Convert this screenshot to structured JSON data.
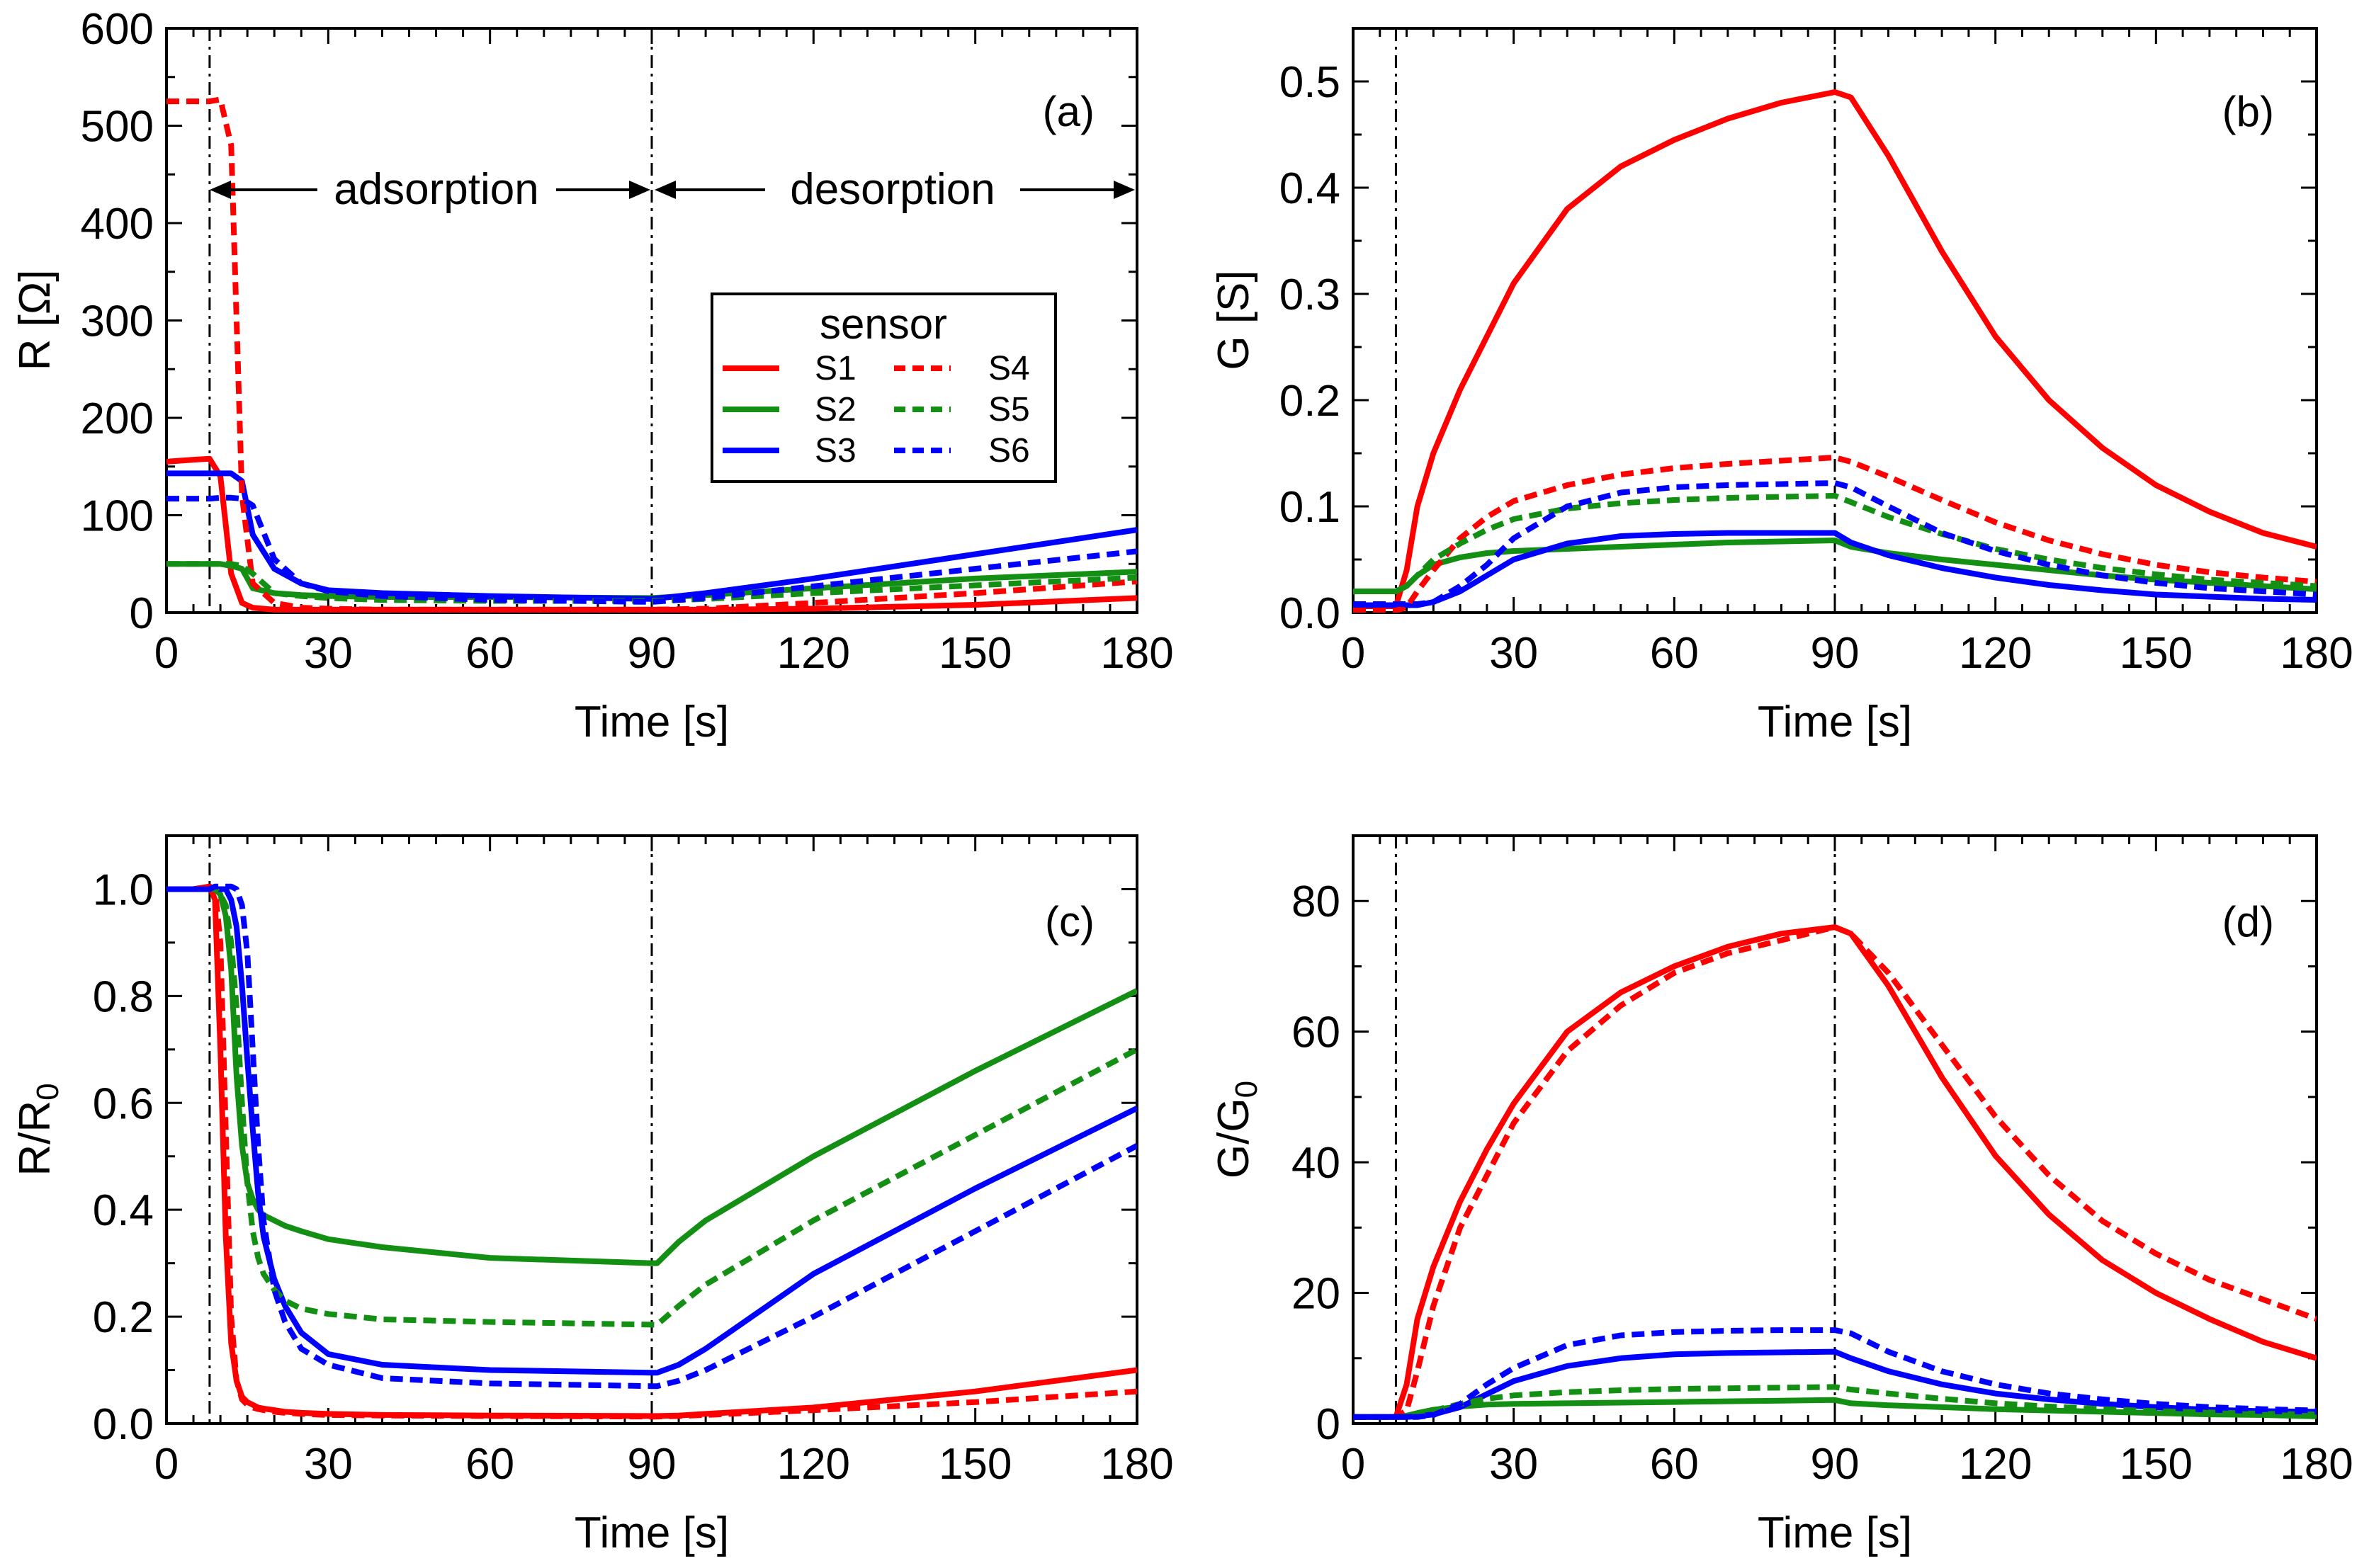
{
  "figure": {
    "legend": {
      "title": "sensor",
      "entries": [
        {
          "label": "S1",
          "series": "S1"
        },
        {
          "label": "S4",
          "series": "S4"
        },
        {
          "label": "S2",
          "series": "S2"
        },
        {
          "label": "S5",
          "series": "S5"
        },
        {
          "label": "S3",
          "series": "S3"
        },
        {
          "label": "S6",
          "series": "S6"
        }
      ]
    },
    "series_styles": {
      "S1": {
        "color": "#ff0000",
        "dash": "solid"
      },
      "S2": {
        "color": "#138f13",
        "dash": "solid"
      },
      "S3": {
        "color": "#0000ff",
        "dash": "solid"
      },
      "S4": {
        "color": "#ff0000",
        "dash": "dashed"
      },
      "S5": {
        "color": "#138f13",
        "dash": "dashed"
      },
      "S6": {
        "color": "#0000ff",
        "dash": "dashed"
      }
    },
    "annotations": {
      "adsorption": "adsorption",
      "desorption": "desorption",
      "adsorption_span": [
        8,
        90
      ],
      "desorption_span": [
        90,
        180
      ]
    },
    "reference_lines_x": [
      8,
      90
    ]
  },
  "chart_data": [
    {
      "type": "line",
      "panel": "(a)",
      "xlabel": "Time [s]",
      "ylabel": "R [Ω]",
      "xlim": [
        0,
        180
      ],
      "ylim": [
        0,
        600
      ],
      "xticks": [
        0,
        30,
        60,
        90,
        120,
        150,
        180
      ],
      "yticks": [
        0,
        100,
        200,
        300,
        400,
        500,
        600
      ],
      "x": [
        0,
        5,
        8,
        10,
        12,
        14,
        16,
        20,
        25,
        30,
        40,
        60,
        90,
        100,
        120,
        150,
        180
      ],
      "series": [
        {
          "name": "S1",
          "values": [
            155,
            157,
            158,
            140,
            40,
            10,
            5,
            3,
            3,
            3,
            3,
            3,
            3,
            3,
            4,
            8,
            15
          ]
        },
        {
          "name": "S2",
          "values": [
            50,
            50,
            50,
            50,
            48,
            45,
            25,
            20,
            18,
            17,
            16,
            16,
            15,
            18,
            25,
            35,
            42
          ]
        },
        {
          "name": "S3",
          "values": [
            143,
            143,
            143,
            143,
            143,
            135,
            80,
            45,
            30,
            23,
            20,
            17,
            14,
            20,
            35,
            60,
            85
          ]
        },
        {
          "name": "S4",
          "values": [
            525,
            525,
            525,
            527,
            480,
            120,
            30,
            10,
            5,
            4,
            3,
            3,
            3,
            4,
            10,
            20,
            32
          ]
        },
        {
          "name": "S5",
          "values": [
            50,
            50,
            50,
            50,
            50,
            48,
            40,
            20,
            17,
            15,
            13,
            12,
            12,
            14,
            20,
            28,
            36
          ]
        },
        {
          "name": "S6",
          "values": [
            117,
            117,
            117,
            118,
            118,
            117,
            110,
            55,
            30,
            22,
            17,
            13,
            11,
            15,
            27,
            45,
            63
          ]
        }
      ]
    },
    {
      "type": "line",
      "panel": "(b)",
      "xlabel": "Time [s]",
      "ylabel": "G [S]",
      "xlim": [
        0,
        180
      ],
      "ylim": [
        0,
        0.55
      ],
      "xticks": [
        0,
        30,
        60,
        90,
        120,
        150,
        180
      ],
      "yticks": [
        0,
        0.1,
        0.2,
        0.3,
        0.4,
        0.5
      ],
      "x": [
        0,
        8,
        10,
        12,
        15,
        20,
        25,
        30,
        40,
        50,
        60,
        70,
        80,
        90,
        93,
        100,
        110,
        120,
        130,
        140,
        150,
        160,
        170,
        180
      ],
      "series": [
        {
          "name": "S1",
          "values": [
            0.006,
            0.006,
            0.04,
            0.1,
            0.15,
            0.21,
            0.26,
            0.31,
            0.38,
            0.42,
            0.445,
            0.465,
            0.48,
            0.49,
            0.485,
            0.43,
            0.34,
            0.26,
            0.2,
            0.155,
            0.12,
            0.095,
            0.075,
            0.062
          ]
        },
        {
          "name": "S2",
          "values": [
            0.02,
            0.02,
            0.025,
            0.035,
            0.045,
            0.052,
            0.056,
            0.058,
            0.06,
            0.062,
            0.064,
            0.066,
            0.067,
            0.068,
            0.062,
            0.056,
            0.05,
            0.045,
            0.04,
            0.035,
            0.031,
            0.028,
            0.025,
            0.022
          ]
        },
        {
          "name": "S3",
          "values": [
            0.007,
            0.007,
            0.007,
            0.007,
            0.01,
            0.02,
            0.035,
            0.05,
            0.065,
            0.072,
            0.074,
            0.075,
            0.075,
            0.075,
            0.066,
            0.054,
            0.042,
            0.033,
            0.026,
            0.021,
            0.017,
            0.015,
            0.013,
            0.012
          ]
        },
        {
          "name": "S4",
          "values": [
            0.002,
            0.002,
            0.005,
            0.02,
            0.04,
            0.07,
            0.09,
            0.105,
            0.12,
            0.13,
            0.136,
            0.14,
            0.143,
            0.146,
            0.142,
            0.128,
            0.106,
            0.085,
            0.068,
            0.055,
            0.045,
            0.038,
            0.033,
            0.029
          ]
        },
        {
          "name": "S5",
          "values": [
            0.02,
            0.02,
            0.025,
            0.035,
            0.05,
            0.065,
            0.078,
            0.088,
            0.098,
            0.103,
            0.106,
            0.108,
            0.109,
            0.11,
            0.104,
            0.09,
            0.074,
            0.06,
            0.05,
            0.042,
            0.036,
            0.031,
            0.028,
            0.025
          ]
        },
        {
          "name": "S6",
          "values": [
            0.008,
            0.008,
            0.008,
            0.008,
            0.01,
            0.025,
            0.045,
            0.07,
            0.1,
            0.113,
            0.118,
            0.12,
            0.121,
            0.122,
            0.118,
            0.1,
            0.075,
            0.058,
            0.045,
            0.035,
            0.028,
            0.023,
            0.02,
            0.017
          ]
        }
      ]
    },
    {
      "type": "line",
      "panel": "(c)",
      "xlabel": "Time [s]",
      "ylabel": "R/R",
      "ylabel_sub": "0",
      "xlim": [
        0,
        180
      ],
      "ylim": [
        0,
        1.1
      ],
      "xticks": [
        0,
        30,
        60,
        90,
        120,
        150,
        180
      ],
      "yticks": [
        0.0,
        0.2,
        0.4,
        0.6,
        0.8,
        1.0
      ],
      "x": [
        0,
        5,
        8,
        9,
        10,
        11,
        12,
        13,
        14,
        15,
        16,
        17,
        18,
        20,
        22,
        25,
        30,
        40,
        60,
        90,
        91,
        95,
        100,
        120,
        150,
        180
      ],
      "series": [
        {
          "name": "S1",
          "values": [
            1.0,
            1.0,
            1.005,
            0.98,
            0.7,
            0.35,
            0.15,
            0.08,
            0.05,
            0.04,
            0.035,
            0.03,
            0.028,
            0.025,
            0.022,
            0.02,
            0.018,
            0.016,
            0.015,
            0.014,
            0.014,
            0.015,
            0.018,
            0.03,
            0.06,
            0.1
          ]
        },
        {
          "name": "S2",
          "values": [
            1.0,
            1.0,
            1.0,
            1.0,
            0.99,
            0.95,
            0.85,
            0.65,
            0.52,
            0.45,
            0.42,
            0.4,
            0.39,
            0.38,
            0.37,
            0.36,
            0.345,
            0.33,
            0.31,
            0.3,
            0.3,
            0.34,
            0.38,
            0.5,
            0.66,
            0.81
          ]
        },
        {
          "name": "S3",
          "values": [
            1.0,
            1.0,
            1.0,
            1.0,
            1.0,
            1.0,
            0.98,
            0.93,
            0.82,
            0.68,
            0.55,
            0.43,
            0.35,
            0.27,
            0.22,
            0.17,
            0.13,
            0.11,
            0.1,
            0.095,
            0.095,
            0.11,
            0.14,
            0.28,
            0.44,
            0.59
          ]
        },
        {
          "name": "S4",
          "values": [
            1.0,
            1.0,
            1.005,
            1.0,
            0.9,
            0.55,
            0.2,
            0.08,
            0.045,
            0.035,
            0.03,
            0.027,
            0.025,
            0.022,
            0.02,
            0.018,
            0.016,
            0.015,
            0.014,
            0.013,
            0.013,
            0.014,
            0.016,
            0.025,
            0.04,
            0.06
          ]
        },
        {
          "name": "S5",
          "values": [
            1.0,
            1.0,
            1.0,
            1.0,
            0.99,
            0.97,
            0.9,
            0.78,
            0.6,
            0.45,
            0.36,
            0.31,
            0.28,
            0.25,
            0.23,
            0.215,
            0.205,
            0.195,
            0.19,
            0.185,
            0.185,
            0.22,
            0.26,
            0.38,
            0.54,
            0.7
          ]
        },
        {
          "name": "S6",
          "values": [
            1.0,
            1.0,
            1.0,
            1.005,
            1.005,
            1.005,
            1.005,
            1.0,
            0.97,
            0.88,
            0.7,
            0.52,
            0.38,
            0.25,
            0.19,
            0.14,
            0.11,
            0.085,
            0.075,
            0.07,
            0.07,
            0.08,
            0.1,
            0.2,
            0.36,
            0.52
          ]
        }
      ]
    },
    {
      "type": "line",
      "panel": "(d)",
      "xlabel": "Time [s]",
      "ylabel": "G/G",
      "ylabel_sub": "0",
      "xlim": [
        0,
        180
      ],
      "ylim": [
        0,
        90
      ],
      "xticks": [
        0,
        30,
        60,
        90,
        120,
        150,
        180
      ],
      "yticks": [
        0,
        20,
        40,
        60,
        80
      ],
      "x": [
        0,
        8,
        10,
        12,
        15,
        20,
        25,
        30,
        40,
        50,
        60,
        70,
        80,
        90,
        93,
        100,
        110,
        120,
        130,
        140,
        150,
        160,
        170,
        180
      ],
      "series": [
        {
          "name": "S1",
          "values": [
            1,
            1,
            6,
            16,
            24,
            34,
            42,
            49,
            60,
            66,
            70,
            73,
            75,
            76,
            75,
            67,
            53,
            41,
            32,
            25,
            20,
            16,
            12.5,
            10
          ]
        },
        {
          "name": "S2",
          "values": [
            1,
            1,
            1.2,
            1.6,
            2.1,
            2.6,
            2.9,
            3.0,
            3.1,
            3.2,
            3.3,
            3.4,
            3.5,
            3.6,
            3.1,
            2.8,
            2.5,
            2.2,
            2.0,
            1.8,
            1.6,
            1.4,
            1.3,
            1.1
          ]
        },
        {
          "name": "S3",
          "values": [
            1,
            1,
            1,
            1.1,
            1.4,
            2.5,
            4.5,
            6.5,
            8.8,
            10,
            10.6,
            10.8,
            10.9,
            11,
            10,
            8,
            6,
            4.6,
            3.7,
            3.0,
            2.5,
            2.1,
            1.9,
            1.8
          ]
        },
        {
          "name": "S4",
          "values": [
            1,
            1,
            2,
            8,
            18,
            30,
            38,
            46,
            57,
            64,
            69,
            72,
            74,
            76,
            75,
            69,
            58,
            47,
            38,
            31,
            26,
            22,
            19,
            16
          ]
        },
        {
          "name": "S5",
          "values": [
            1,
            1,
            1.1,
            1.4,
            2.0,
            3.0,
            3.8,
            4.3,
            4.8,
            5.1,
            5.3,
            5.4,
            5.5,
            5.6,
            5.2,
            4.6,
            3.8,
            3.1,
            2.6,
            2.2,
            1.9,
            1.7,
            1.5,
            1.4
          ]
        },
        {
          "name": "S6",
          "values": [
            1,
            1,
            1,
            1,
            1.3,
            3,
            6,
            8.5,
            12,
            13.5,
            14,
            14.2,
            14.3,
            14.3,
            13.8,
            11,
            8,
            6,
            4.6,
            3.7,
            3.0,
            2.5,
            2.2,
            2.0
          ]
        }
      ]
    }
  ]
}
